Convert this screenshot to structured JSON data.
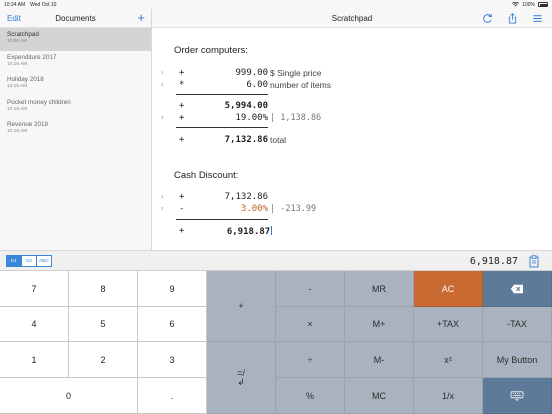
{
  "status": {
    "time": "10:24 AM",
    "date": "Wed Oct 10",
    "battery": "100%"
  },
  "sidebar": {
    "edit": "Edit",
    "title": "Documents",
    "add": "+",
    "documents": [
      {
        "name": "Scratchpad",
        "time": "10:08 AM"
      },
      {
        "name": "Expenditure 2017",
        "time": "10:16 AM"
      },
      {
        "name": "Holiday 2018",
        "time": "10:16 AM"
      },
      {
        "name": "Pocket money children",
        "time": "10:16 AM"
      },
      {
        "name": "Revenue 2018",
        "time": "10:16 AM"
      }
    ]
  },
  "main": {
    "title": "Scratchpad",
    "heading1": "Order computers:",
    "block1": [
      {
        "line": "1",
        "op": "+",
        "num": "999.00",
        "note": "$ Single price"
      },
      {
        "line": "2",
        "op": "*",
        "num": "6.00",
        "note": "number of items"
      },
      {
        "line": "",
        "op": "+",
        "num": "5,994.00",
        "note": ""
      },
      {
        "line": "3",
        "op": "+",
        "num": "19.00%",
        "note": "| 1,138.86"
      },
      {
        "line": "",
        "op": "+",
        "num": "7,132.86",
        "note": "total"
      }
    ],
    "heading2": "Cash Discount:",
    "block2": [
      {
        "line": "1",
        "op": "+",
        "num": "7,132.86",
        "note": ""
      },
      {
        "line": "2",
        "op": "-",
        "num": "3.00%",
        "note": "| -213.99"
      },
      {
        "line": "",
        "op": "+",
        "num": "6,918.87",
        "note": ""
      }
    ]
  },
  "bar": {
    "tabs": [
      "K1",
      "K2",
      "ABC"
    ],
    "result": "6,918.87"
  },
  "keys": {
    "k7": "7",
    "k8": "8",
    "k9": "9",
    "k4": "4",
    "k5": "5",
    "k6": "6",
    "k1": "1",
    "k2": "2",
    "k3": "3",
    "k0": "0",
    "kdot": ".",
    "plus": "+",
    "minus": "-",
    "times": "×",
    "divide": "÷",
    "percent": "%",
    "enter_top": "=/",
    "enter_bottom": "↲",
    "mr": "MR",
    "mplus": "M+",
    "mminus": "M-",
    "mc": "MC",
    "ac": "AC",
    "plustax": "+TAX",
    "square": "x²",
    "reciprocal": "1/x",
    "minustax": "-TAX",
    "mybutton": "My Button"
  },
  "colors": {
    "accent": "#2e7bd6",
    "ac": "#c86a32",
    "op": "#a9b3bf",
    "blue": "#5e7a99",
    "orange_text": "#c4602a"
  }
}
